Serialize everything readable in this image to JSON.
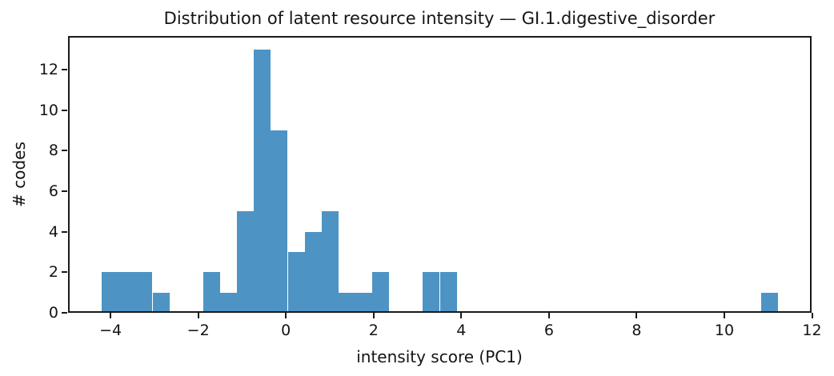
{
  "figure": {
    "title": "Distribution of latent resource intensity — GI.1.digestive_disorder"
  },
  "chart_data": {
    "type": "bar",
    "subtype": "histogram",
    "title": "Distribution of latent resource intensity — GI.1.digestive_disorder",
    "xlabel": "intensity score (PC1)",
    "ylabel": "# codes",
    "bar_color": "#4d94c4",
    "axis_color": "#1a1a1a",
    "grid": false,
    "legend": null,
    "bin_start": -4.2,
    "bin_width": 0.3855,
    "n_bins": 40,
    "counts": [
      2,
      2,
      2,
      1,
      0,
      0,
      2,
      1,
      5,
      13,
      9,
      3,
      4,
      5,
      1,
      1,
      2,
      0,
      0,
      2,
      2,
      0,
      0,
      0,
      0,
      0,
      0,
      0,
      0,
      0,
      0,
      0,
      0,
      0,
      0,
      0,
      0,
      0,
      0,
      1
    ],
    "total_codes": 58,
    "xlim": [
      -4.97,
      11.99
    ],
    "ylim": [
      0,
      13.65
    ],
    "xticks": [
      -4,
      -2,
      0,
      2,
      4,
      6,
      8,
      10,
      12
    ],
    "xtick_labels": [
      "−4",
      "−2",
      "0",
      "2",
      "4",
      "6",
      "8",
      "10",
      "12"
    ],
    "yticks": [
      0,
      2,
      4,
      6,
      8,
      10,
      12
    ],
    "ytick_labels": [
      "0",
      "2",
      "4",
      "6",
      "8",
      "10",
      "12"
    ]
  }
}
